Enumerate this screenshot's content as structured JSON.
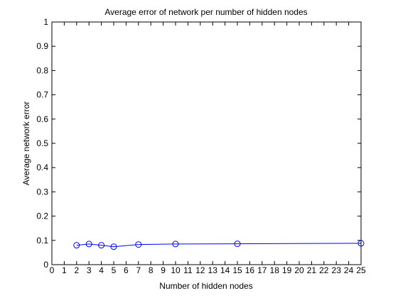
{
  "chart_data": {
    "type": "line",
    "title": "Average error of network per number of hidden nodes",
    "xlabel": "Number of hidden nodes",
    "ylabel": "Average network error",
    "xlim": [
      0,
      25
    ],
    "ylim": [
      0,
      1
    ],
    "xticks": [
      "0",
      "1",
      "2",
      "3",
      "4",
      "5",
      "6",
      "7",
      "8",
      "9",
      "10",
      "11",
      "12",
      "13",
      "14",
      "15",
      "16",
      "17",
      "18",
      "19",
      "20",
      "21",
      "22",
      "23",
      "24",
      "25"
    ],
    "yticks": [
      "0",
      "0.1",
      "0.2",
      "0.3",
      "0.4",
      "0.5",
      "0.6",
      "0.7",
      "0.8",
      "0.9",
      "1"
    ],
    "grid": false,
    "series": [
      {
        "color": "#0000ff",
        "marker": "circle",
        "x": [
          2,
          3,
          4,
          5,
          7,
          10,
          15,
          25
        ],
        "y": [
          0.08,
          0.085,
          0.08,
          0.074,
          0.083,
          0.085,
          0.086,
          0.088
        ]
      }
    ]
  }
}
